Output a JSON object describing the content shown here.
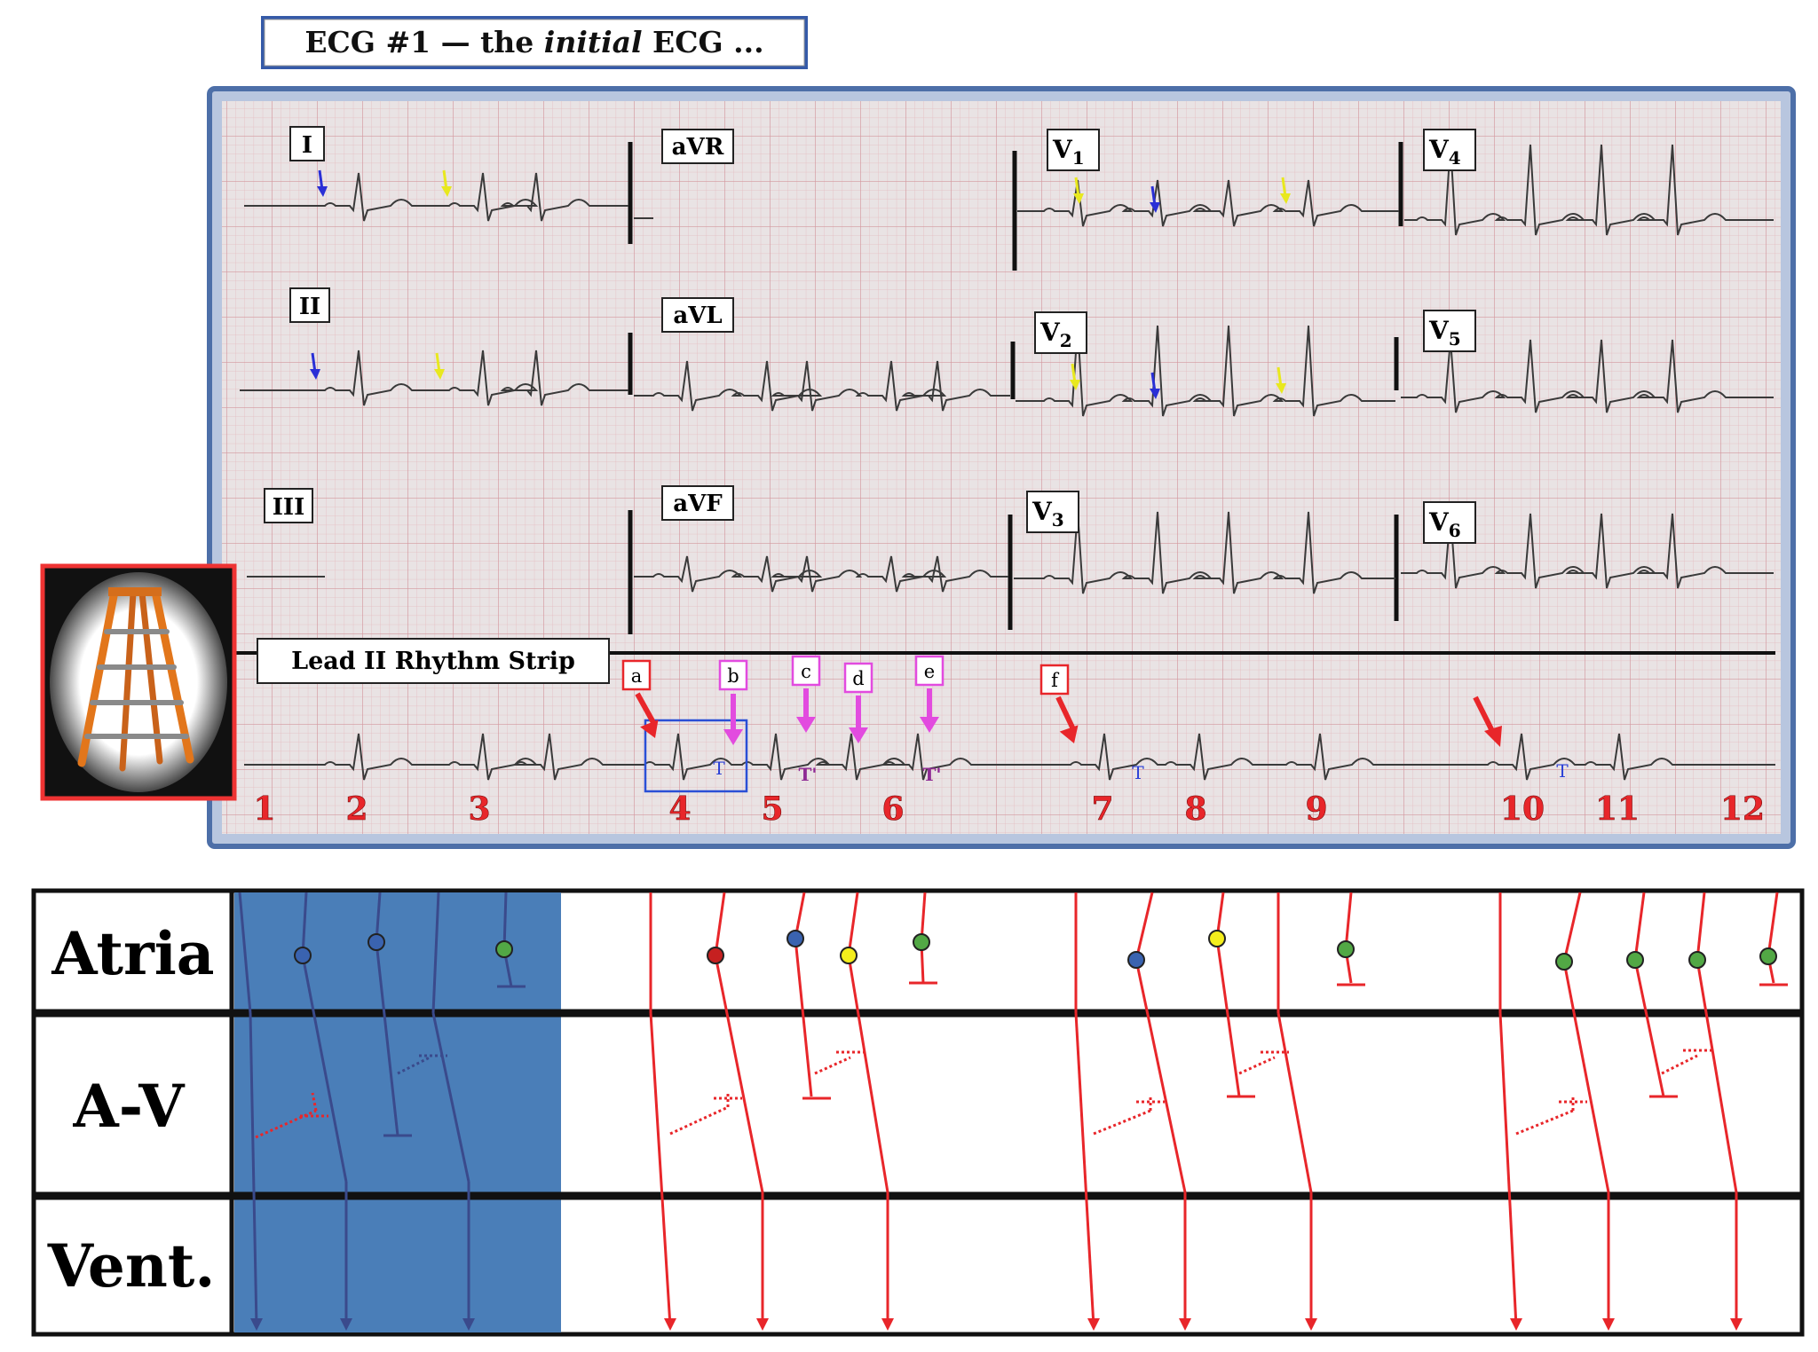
{
  "title": {
    "prefix": "ECG #1 — the ",
    "italic": "initial",
    "suffix": " ECG ..."
  },
  "leads": {
    "I": "I",
    "II": "II",
    "III": "III",
    "aVR": "aVR",
    "aVL": "aVL",
    "aVF": "aVF",
    "V1": "V",
    "V1_sub": "1",
    "V2": "V",
    "V2_sub": "2",
    "V3": "V",
    "V3_sub": "3",
    "V4": "V",
    "V4_sub": "4",
    "V5": "V",
    "V5_sub": "5",
    "V6": "V",
    "V6_sub": "6"
  },
  "rhythm_strip_label": "Lead II Rhythm Strip",
  "letter_markers": [
    "a",
    "b",
    "c",
    "d",
    "e",
    "f"
  ],
  "t_labels": {
    "T": "T",
    "T_prime": "T'"
  },
  "beat_numbers": [
    "1",
    "2",
    "3",
    "4",
    "5",
    "6",
    "7",
    "8",
    "9",
    "10",
    "11",
    "12"
  ],
  "ladder": {
    "rows": [
      "Atria",
      "A-V",
      "Vent."
    ]
  },
  "colors": {
    "grid_minor": "#e7b9bd",
    "grid_major": "#d28a92",
    "paper": "#e9e3e4",
    "trace": "#3a3a3a",
    "frame_blue": "#5a7db5",
    "red": "#e8262a",
    "magenta": "#e24bdf",
    "navy": "#3a4a8c",
    "highlight": "#4a7eb8",
    "dot_blue": "#3a63b0",
    "dot_yellow": "#f4ee1c",
    "dot_green": "#52a845",
    "dot_red": "#c62020",
    "purple_text": "#8e2a94",
    "blue_text": "#2a3fd6"
  },
  "icons": [
    "step-ladder-icon"
  ]
}
